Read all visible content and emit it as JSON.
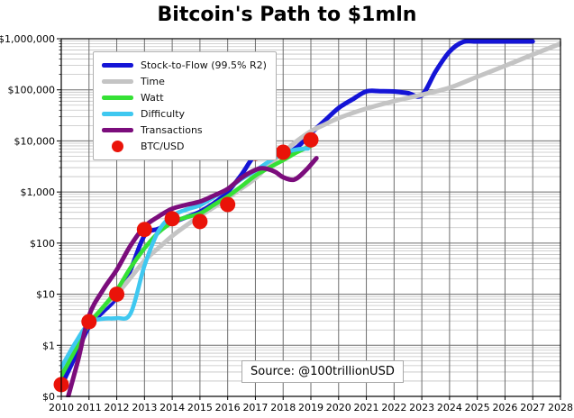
{
  "title": "Bitcoin's Path to $1mln",
  "source_label": "Source: @100trillionUSD",
  "chart_data": {
    "type": "line",
    "title": "Bitcoin's Path to $1mln",
    "xlabel": "",
    "ylabel": "",
    "y_scale": "log",
    "grid": "both",
    "legend_position": "upper left",
    "x_axis": {
      "ticks": [
        2010,
        2011,
        2012,
        2013,
        2014,
        2015,
        2016,
        2017,
        2018,
        2019,
        2020,
        2021,
        2022,
        2023,
        2024,
        2025,
        2026,
        2027,
        2028
      ],
      "range": [
        2010,
        2028
      ]
    },
    "y_axis": {
      "ticks": [
        {
          "label": "$1,000,000",
          "value": 1000000
        },
        {
          "label": "$100,000",
          "value": 100000
        },
        {
          "label": "$10,000",
          "value": 10000
        },
        {
          "label": "$1,000",
          "value": 1000
        },
        {
          "label": "$100",
          "value": 100
        },
        {
          "label": "$10",
          "value": 10
        },
        {
          "label": "$1",
          "value": 1
        },
        {
          "label": "$0",
          "value": 0.1
        }
      ],
      "range_usd": [
        0.1,
        1000000
      ]
    },
    "series": [
      {
        "name": "Stock-to-Flow (99.5% R2)",
        "color": "#1414d6",
        "line_width": 5,
        "x": [
          2010,
          2010.5,
          2011,
          2011.5,
          2012,
          2012.5,
          2013,
          2013.5,
          2014,
          2014.5,
          2015,
          2015.5,
          2016,
          2016.5,
          2017,
          2017.5,
          2018,
          2018.5,
          2019,
          2019.5,
          2020,
          2020.5,
          2021,
          2021.5,
          2022,
          2022.5,
          2023,
          2023.5,
          2024,
          2024.5,
          2025,
          2026,
          2027
        ],
        "y": [
          0.16,
          0.6,
          2.3,
          4.5,
          8.7,
          30,
          140,
          190,
          250,
          320,
          410,
          600,
          1000,
          2200,
          5300,
          6100,
          5400,
          7500,
          14000,
          25000,
          44000,
          65000,
          93000,
          94000,
          93000,
          86000,
          78000,
          230000,
          560000,
          870000,
          885000,
          885000,
          885000
        ]
      },
      {
        "name": "Time",
        "color": "#c4c4c4",
        "line_width": 5,
        "x": [
          2010,
          2010.5,
          2011,
          2011.5,
          2012,
          2012.5,
          2013,
          2013.5,
          2014,
          2014.5,
          2015,
          2015.5,
          2016,
          2016.5,
          2017,
          2017.5,
          2018,
          2018.5,
          2019,
          2019.5,
          2020,
          2021,
          2022,
          2023,
          2024,
          2025,
          2026,
          2027,
          2028
        ],
        "y": [
          0.34,
          1.0,
          2.6,
          5.5,
          10,
          21,
          45,
          80,
          138,
          220,
          340,
          500,
          760,
          1180,
          1850,
          3400,
          6000,
          10000,
          15500,
          21000,
          28000,
          43000,
          60000,
          80000,
          110000,
          180000,
          295000,
          490000,
          800000
        ]
      },
      {
        "name": "Watt",
        "color": "#35e135",
        "line_width": 4.6,
        "x": [
          2010,
          2010.5,
          2011,
          2011.5,
          2012,
          2012.5,
          2013,
          2013.5,
          2014,
          2014.5,
          2015,
          2015.5,
          2016,
          2016.5,
          2017,
          2017.5,
          2018,
          2018.5,
          2019
        ],
        "y": [
          0.25,
          0.8,
          2.6,
          5.5,
          12,
          33,
          79,
          160,
          253,
          320,
          380,
          560,
          820,
          1300,
          2100,
          3000,
          4200,
          6000,
          8000
        ]
      },
      {
        "name": "Difficulty",
        "color": "#3fc8f0",
        "line_width": 4.6,
        "x": [
          2010,
          2010.5,
          2011,
          2011.5,
          2012,
          2012.5,
          2013,
          2013.5,
          2014,
          2014.5,
          2015,
          2015.5,
          2016,
          2016.5,
          2017,
          2017.5,
          2018,
          2018.5,
          2018.9
        ],
        "y": [
          0.37,
          1.1,
          2.7,
          3.3,
          3.4,
          4.2,
          36,
          170,
          340,
          450,
          550,
          800,
          1150,
          1800,
          2600,
          4000,
          5800,
          6800,
          7100
        ]
      },
      {
        "name": "Transactions",
        "color": "#7b0d7c",
        "line_width": 5,
        "x": [
          2010.25,
          2010.6,
          2011,
          2011.5,
          2012,
          2012.5,
          2013,
          2013.5,
          2014,
          2014.5,
          2015,
          2015.5,
          2016,
          2016.5,
          2017,
          2017.3,
          2017.7,
          2018,
          2018.4,
          2018.8,
          2019.2
        ],
        "y": [
          0.1,
          0.5,
          3.8,
          12,
          30,
          90,
          210,
          330,
          470,
          560,
          650,
          850,
          1150,
          1900,
          2700,
          2900,
          2500,
          1950,
          1750,
          2600,
          4600
        ]
      }
    ],
    "points": {
      "name": "BTC/USD",
      "color": "#ea1309",
      "marker": "circle",
      "radius": 8.5,
      "x": [
        2010,
        2011,
        2012,
        2013,
        2014,
        2015,
        2016,
        2017,
        2018,
        2019
      ],
      "y": [
        0.17,
        2.9,
        10,
        185,
        300,
        265,
        570,
        5750,
        6000,
        10500
      ]
    }
  },
  "style": {
    "major_grid_color": "#6e6e6e",
    "minor_grid_color": "#c3c3c3",
    "axis_color": "#000000",
    "tick_label_size": 11
  }
}
